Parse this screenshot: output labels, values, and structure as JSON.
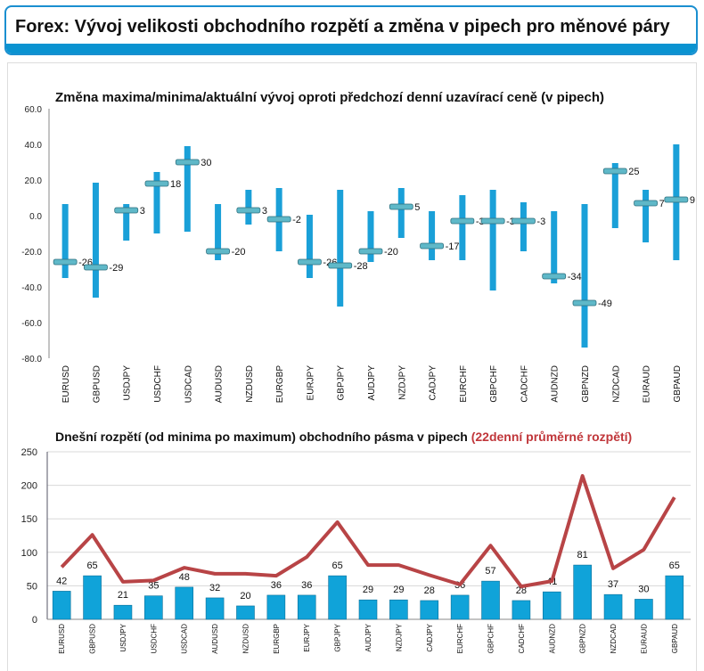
{
  "header": {
    "title": "Forex: Vývoj velikosti obchodního rozpětí a změna v pipech pro měnové páry"
  },
  "chart_data": [
    {
      "type": "range",
      "title": "Změna maxima/minima/aktuální vývoj oproti předchozí denní uzavírací ceně (v pipech)",
      "categories": [
        "EURUSD",
        "GBPUSD",
        "USDJPY",
        "USDCHF",
        "USDCAD",
        "AUDUSD",
        "NZDUSD",
        "EURGBP",
        "EURJPY",
        "GBPJPY",
        "AUDJPY",
        "NZDJPY",
        "CADJPY",
        "EURCHF",
        "GBPCHF",
        "CADCHF",
        "AUDNZD",
        "GBPNZD",
        "NZDCAD",
        "EURAUD",
        "GBPAUD"
      ],
      "high": [
        6.5,
        18.5,
        6.5,
        24.5,
        39,
        6.5,
        14.5,
        15.5,
        0.5,
        14.5,
        2.5,
        15.5,
        2.5,
        11.5,
        14.5,
        7.5,
        2.5,
        6.5,
        29.5,
        14.5,
        40
      ],
      "low": [
        -35,
        -46,
        -14,
        -10,
        -9,
        -25,
        -5,
        -20,
        -35,
        -51,
        -26,
        -12.5,
        -25,
        -25,
        -42,
        -20,
        -38,
        -74,
        -7,
        -15,
        -25
      ],
      "current": [
        -26,
        -29,
        3,
        18,
        30,
        -20,
        3,
        -2,
        -26,
        -28,
        -20,
        5,
        -17,
        -3,
        -3,
        -3,
        -34,
        -49,
        25,
        7,
        9
      ],
      "ylim": [
        -80,
        60
      ],
      "yticks": [
        "60.0",
        "40.0",
        "20.0",
        "0.0",
        "-20.0",
        "-40.0",
        "-60.0",
        "-80.0"
      ],
      "grid": false,
      "colors": {
        "bar": "#1aa0d8",
        "marker": "#5fb8c8"
      }
    },
    {
      "type": "bar+line",
      "title": "Dnešní rozpětí (od minima po maximum) obchodního pásma v pipech",
      "title_highlight": "(22denní průměrné rozpětí)",
      "categories": [
        "EURUSD",
        "GBPUSD",
        "USDJPY",
        "USDCHF",
        "USDCAD",
        "AUDUSD",
        "NZDUSD",
        "EURGBP",
        "EURJPY",
        "GBPJPY",
        "AUDJPY",
        "NZDJPY",
        "CADJPY",
        "EURCHF",
        "GBPCHF",
        "CADCHF",
        "AUDNZD",
        "GBPNZD",
        "NZDCAD",
        "EURAUD",
        "GBPAUD"
      ],
      "series": [
        {
          "type": "bar",
          "values": [
            42,
            65,
            21,
            35,
            48,
            32,
            20,
            36,
            36,
            65,
            29,
            29,
            28,
            36,
            57,
            28,
            41,
            81,
            37,
            30,
            65
          ]
        },
        {
          "type": "line",
          "values": [
            78,
            126,
            56,
            58,
            77,
            68,
            68,
            65,
            93,
            145,
            81,
            81,
            66,
            52,
            110,
            49,
            57,
            214,
            76,
            104,
            182
          ]
        }
      ],
      "ylim": [
        0,
        250
      ],
      "yticks": [
        "250",
        "200",
        "150",
        "100",
        "50",
        "0"
      ],
      "grid": true,
      "colors": {
        "bar": "#10a3d9",
        "line": "#b84446",
        "highlight": "#c0363a"
      }
    }
  ]
}
